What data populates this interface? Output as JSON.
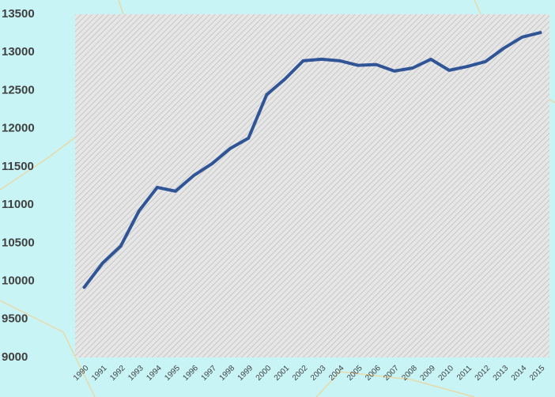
{
  "chart_data": {
    "type": "line",
    "categories": [
      "1990",
      "1991",
      "1992",
      "1993",
      "1994",
      "1995",
      "1996",
      "1997",
      "1998",
      "1999",
      "2000",
      "2001",
      "2002",
      "2003",
      "2004",
      "2005",
      "2006",
      "2007",
      "2008",
      "2009",
      "2010",
      "2011",
      "2012",
      "2013",
      "2014",
      "2015"
    ],
    "series": [
      {
        "color": "#2f5597",
        "values": [
          9920,
          10235,
          10460,
          10920,
          11230,
          11180,
          11385,
          11540,
          11740,
          11875,
          12445,
          12650,
          12890,
          12910,
          12890,
          12830,
          12840,
          12755,
          12795,
          12910,
          12765,
          12815,
          12880,
          13055,
          13200,
          13260
        ]
      }
    ],
    "ylim": [
      9000,
      13500
    ],
    "yticks": [
      9000,
      9500,
      10000,
      10500,
      11000,
      11500,
      12000,
      12500,
      13000,
      13500
    ],
    "grid": false
  }
}
